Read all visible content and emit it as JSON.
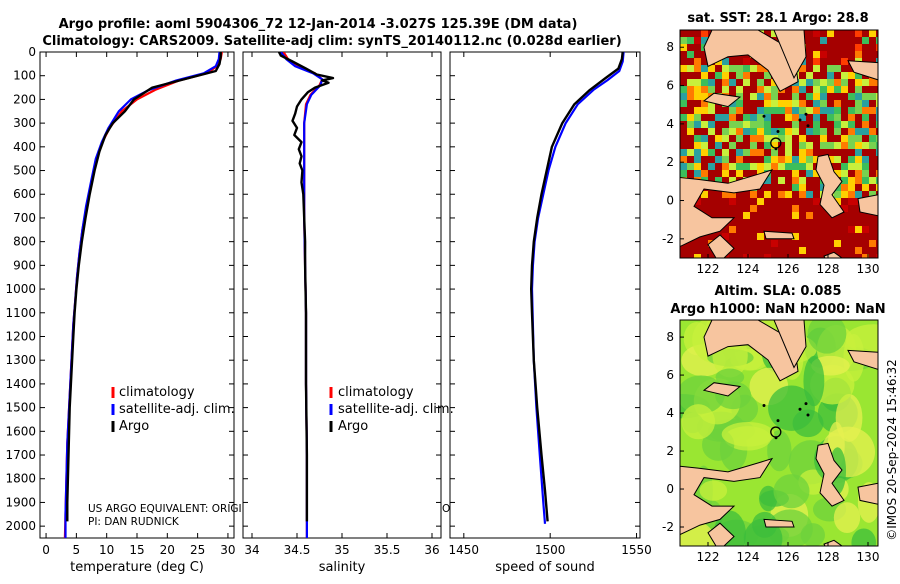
{
  "title_line1": "Argo profile: aoml 5904306_72 12-Jan-2014 -3.027S 125.39E (DM data)",
  "title_line2": "Climatology: CARS2009. Satellite-adj clim: synTS_20140112.nc (0.028d earlier)",
  "credit": "©IMOS 20-Sep-2024 15:46:32",
  "note_line1": "US ARGO EQUIVALENT: ORIGI",
  "note_line1_tail": "O",
  "note_line2": "PI: DAN RUDNICK",
  "legend": [
    "climatology",
    "satellite-adj. clim.",
    "Argo"
  ],
  "colors": {
    "climatology": "#ff0000",
    "satellite": "#0000ff",
    "argo": "#000000"
  },
  "map_sst_title": "sat. SST: 28.1 Argo: 28.8",
  "map_sla_title1": "Altim. SLA: 0.085",
  "map_sla_title2": "Argo h1000: NaN h2000: NaN",
  "map_lon_ticks": [
    "122",
    "124",
    "126",
    "128",
    "130"
  ],
  "map_lat_ticks": [
    "8",
    "6",
    "4",
    "2",
    "0",
    "-2"
  ],
  "chart_data": [
    {
      "type": "line",
      "name": "temperature",
      "xlabel": "temperature (deg C)",
      "ylabel": "",
      "xlim": [
        -1,
        31
      ],
      "ylim": [
        0,
        2050
      ],
      "xticks": [
        "0",
        "5",
        "10",
        "15",
        "20",
        "25",
        "30"
      ],
      "xtick_values": [
        0,
        5,
        10,
        15,
        20,
        25,
        30
      ],
      "yticks": [
        "0",
        "100",
        "200",
        "300",
        "400",
        "500",
        "600",
        "700",
        "800",
        "900",
        "1000",
        "1100",
        "1200",
        "1300",
        "1400",
        "1500",
        "1600",
        "1700",
        "1800",
        "1900",
        "2000"
      ],
      "ytick_values": [
        0,
        100,
        200,
        300,
        400,
        500,
        600,
        700,
        800,
        900,
        1000,
        1100,
        1200,
        1300,
        1400,
        1500,
        1600,
        1700,
        1800,
        1900,
        2000
      ],
      "series": [
        {
          "name": "climatology",
          "points": [
            [
              29.0,
              0
            ],
            [
              28.8,
              30
            ],
            [
              28.2,
              60
            ],
            [
              26.5,
              90
            ],
            [
              22.0,
              120
            ],
            [
              18.0,
              160
            ],
            [
              15.0,
              200
            ],
            [
              12.5,
              250
            ],
            [
              10.5,
              320
            ],
            [
              9.3,
              380
            ],
            [
              8.3,
              450
            ],
            [
              7.5,
              550
            ],
            [
              6.7,
              650
            ],
            [
              6.0,
              750
            ],
            [
              5.5,
              850
            ],
            [
              5.1,
              950
            ],
            [
              4.8,
              1050
            ],
            [
              4.5,
              1150
            ],
            [
              4.3,
              1250
            ],
            [
              4.1,
              1350
            ],
            [
              3.9,
              1450
            ],
            [
              3.7,
              1550
            ],
            [
              3.5,
              1650
            ],
            [
              3.4,
              1750
            ],
            [
              3.3,
              1850
            ],
            [
              3.2,
              1950
            ],
            [
              3.1,
              2050
            ]
          ]
        },
        {
          "name": "satellite-adj. clim.",
          "points": [
            [
              28.6,
              0
            ],
            [
              28.5,
              30
            ],
            [
              28.0,
              60
            ],
            [
              26.0,
              90
            ],
            [
              21.5,
              120
            ],
            [
              17.0,
              160
            ],
            [
              14.0,
              200
            ],
            [
              12.0,
              250
            ],
            [
              10.3,
              320
            ],
            [
              9.2,
              380
            ],
            [
              8.2,
              450
            ],
            [
              7.4,
              550
            ],
            [
              6.6,
              650
            ],
            [
              6.0,
              750
            ],
            [
              5.5,
              850
            ],
            [
              5.1,
              950
            ],
            [
              4.8,
              1050
            ],
            [
              4.5,
              1150
            ],
            [
              4.3,
              1250
            ],
            [
              4.1,
              1350
            ],
            [
              3.9,
              1450
            ],
            [
              3.7,
              1550
            ],
            [
              3.5,
              1650
            ],
            [
              3.4,
              1750
            ],
            [
              3.3,
              1850
            ],
            [
              3.2,
              1950
            ],
            [
              3.2,
              2050
            ]
          ]
        },
        {
          "name": "Argo",
          "points": [
            [
              28.8,
              0
            ],
            [
              28.8,
              20
            ],
            [
              28.6,
              50
            ],
            [
              28.0,
              80
            ],
            [
              23.5,
              110
            ],
            [
              17.5,
              150
            ],
            [
              14.5,
              200
            ],
            [
              13.0,
              250
            ],
            [
              11.0,
              300
            ],
            [
              9.8,
              350
            ],
            [
              8.8,
              420
            ],
            [
              8.0,
              500
            ],
            [
              7.2,
              600
            ],
            [
              6.5,
              700
            ],
            [
              5.9,
              800
            ],
            [
              5.4,
              900
            ],
            [
              5.0,
              1000
            ],
            [
              4.7,
              1100
            ],
            [
              4.5,
              1200
            ],
            [
              4.3,
              1300
            ],
            [
              4.1,
              1400
            ],
            [
              3.9,
              1500
            ],
            [
              3.8,
              1600
            ],
            [
              3.7,
              1700
            ],
            [
              3.6,
              1800
            ],
            [
              3.5,
              1900
            ],
            [
              3.5,
              1980
            ]
          ]
        }
      ]
    },
    {
      "type": "line",
      "name": "salinity",
      "xlabel": "salinity",
      "ylabel": "",
      "xlim": [
        33.9,
        36.1
      ],
      "ylim": [
        0,
        2050
      ],
      "xticks": [
        "34",
        "34.5",
        "35",
        "35.5",
        "36"
      ],
      "xtick_values": [
        34,
        34.5,
        35,
        35.5,
        36
      ],
      "series": [
        {
          "name": "climatology",
          "points": [
            [
              34.35,
              0
            ],
            [
              34.4,
              30
            ],
            [
              34.5,
              60
            ],
            [
              34.7,
              90
            ],
            [
              34.78,
              115
            ],
            [
              34.75,
              140
            ],
            [
              34.65,
              180
            ],
            [
              34.6,
              220
            ],
            [
              34.58,
              300
            ],
            [
              34.58,
              400
            ],
            [
              34.58,
              500
            ],
            [
              34.58,
              700
            ],
            [
              34.59,
              900
            ],
            [
              34.6,
              1100
            ],
            [
              34.6,
              1400
            ],
            [
              34.61,
              1700
            ],
            [
              34.61,
              2050
            ]
          ]
        },
        {
          "name": "satellite-adj. clim.",
          "points": [
            [
              34.32,
              0
            ],
            [
              34.38,
              30
            ],
            [
              34.48,
              60
            ],
            [
              34.68,
              90
            ],
            [
              34.78,
              115
            ],
            [
              34.76,
              140
            ],
            [
              34.66,
              180
            ],
            [
              34.61,
              220
            ],
            [
              34.58,
              300
            ],
            [
              34.58,
              400
            ],
            [
              34.58,
              500
            ],
            [
              34.58,
              700
            ],
            [
              34.59,
              900
            ],
            [
              34.6,
              1100
            ],
            [
              34.6,
              1400
            ],
            [
              34.61,
              1700
            ],
            [
              34.61,
              2050
            ]
          ]
        },
        {
          "name": "Argo",
          "points": [
            [
              34.3,
              0
            ],
            [
              34.32,
              15
            ],
            [
              34.45,
              40
            ],
            [
              34.6,
              70
            ],
            [
              34.72,
              95
            ],
            [
              34.9,
              110
            ],
            [
              34.78,
              120
            ],
            [
              34.85,
              130
            ],
            [
              34.7,
              150
            ],
            [
              34.62,
              170
            ],
            [
              34.55,
              200
            ],
            [
              34.5,
              230
            ],
            [
              34.48,
              260
            ],
            [
              34.45,
              290
            ],
            [
              34.5,
              320
            ],
            [
              34.47,
              350
            ],
            [
              34.55,
              380
            ],
            [
              34.52,
              410
            ],
            [
              34.55,
              440
            ],
            [
              34.53,
              470
            ],
            [
              34.56,
              500
            ],
            [
              34.55,
              550
            ],
            [
              34.57,
              600
            ],
            [
              34.58,
              700
            ],
            [
              34.59,
              800
            ],
            [
              34.59,
              900
            ],
            [
              34.6,
              1100
            ],
            [
              34.6,
              1400
            ],
            [
              34.61,
              1700
            ],
            [
              34.61,
              1980
            ]
          ]
        }
      ]
    },
    {
      "type": "line",
      "name": "speed of sound",
      "xlabel": "speed of sound",
      "ylabel": "",
      "xlim": [
        1442,
        1552
      ],
      "ylim": [
        0,
        2050
      ],
      "xticks": [
        "1450",
        "1500",
        "1550"
      ],
      "xtick_values": [
        1450,
        1500,
        1550
      ],
      "series": [
        {
          "name": "satellite-adj. clim.",
          "points": [
            [
              1542.5,
              0
            ],
            [
              1542,
              40
            ],
            [
              1540,
              80
            ],
            [
              1533,
              120
            ],
            [
              1525,
              160
            ],
            [
              1516,
              220
            ],
            [
              1509,
              300
            ],
            [
              1503,
              400
            ],
            [
              1499,
              500
            ],
            [
              1496,
              600
            ],
            [
              1493,
              700
            ],
            [
              1491,
              800
            ],
            [
              1490,
              900
            ],
            [
              1489.5,
              1000
            ],
            [
              1489.8,
              1100
            ],
            [
              1490.5,
              1300
            ],
            [
              1492,
              1500
            ],
            [
              1494,
              1700
            ],
            [
              1496,
              1900
            ],
            [
              1497,
              1990
            ]
          ]
        },
        {
          "name": "Argo",
          "points": [
            [
              1542,
              0
            ],
            [
              1541.5,
              30
            ],
            [
              1539.5,
              70
            ],
            [
              1532,
              110
            ],
            [
              1523,
              160
            ],
            [
              1514,
              220
            ],
            [
              1507,
              300
            ],
            [
              1501,
              400
            ],
            [
              1498,
              500
            ],
            [
              1495,
              600
            ],
            [
              1492.5,
              700
            ],
            [
              1490.5,
              800
            ],
            [
              1489.5,
              900
            ],
            [
              1489,
              1000
            ],
            [
              1489.5,
              1100
            ],
            [
              1490.5,
              1300
            ],
            [
              1492.5,
              1500
            ],
            [
              1495,
              1700
            ],
            [
              1497,
              1850
            ],
            [
              1498.5,
              1980
            ]
          ]
        }
      ]
    }
  ]
}
